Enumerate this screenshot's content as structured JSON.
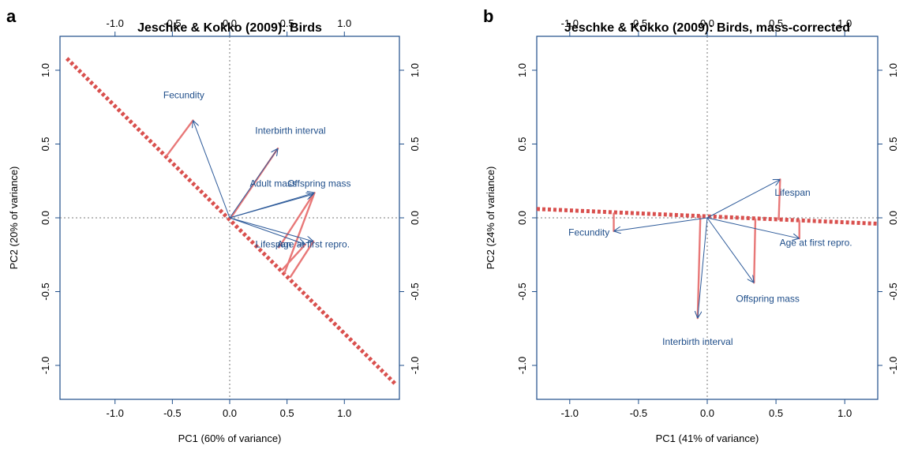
{
  "panels": [
    {
      "letter": "a",
      "chart_data": {
        "type": "scatter",
        "subtype": "pca-biplot",
        "title": "Jeschke & Kokko (2009): Birds",
        "xlabel": "PC1  (60% of variance)",
        "ylabel": "PC2  (20% of variance)",
        "xlim": [
          -1.48,
          1.48
        ],
        "ylim": [
          -1.23,
          1.23
        ],
        "x_ticks": [
          -1.0,
          -0.5,
          0.0,
          0.5,
          1.0
        ],
        "y_ticks": [
          -1.0,
          -0.5,
          0.0,
          0.5,
          1.0
        ],
        "x_tick_labels": [
          "-1.0",
          "-0.5",
          "0.0",
          "0.5",
          "1.0"
        ],
        "y_tick_labels": [
          "-1.0",
          "-0.5",
          "0.0",
          "0.5",
          "1.0"
        ],
        "grid": false,
        "reference_lines": [
          "x=0",
          "y=0"
        ],
        "colors": {
          "arrows": "#2e5b9a",
          "labels": "#1f4e8a",
          "axis_line": "#d9504e",
          "projections": "#e87878"
        },
        "axis_line": {
          "x1": -1.42,
          "y1": 1.08,
          "x2": 1.45,
          "y2": -1.13
        },
        "loadings": [
          {
            "label": "Fecundity",
            "x": -0.32,
            "y": 0.66,
            "proj_x": -0.55,
            "proj_y": 0.42,
            "label_x": -0.4,
            "label_y": 0.81
          },
          {
            "label": "Interbirth interval",
            "x": 0.42,
            "y": 0.47,
            "proj_x": 0.01,
            "proj_y": 0.0,
            "label_x": 0.53,
            "label_y": 0.57
          },
          {
            "label": "Adult mass",
            "x": 0.74,
            "y": 0.17,
            "proj_x": 0.48,
            "proj_y": -0.37,
            "label_x": 0.38,
            "label_y": 0.21
          },
          {
            "label": "Offspring mass",
            "x": 0.73,
            "y": 0.16,
            "proj_x": 0.43,
            "proj_y": -0.2,
            "label_x": 0.78,
            "label_y": 0.21
          },
          {
            "label": "Lifespan",
            "x": 0.66,
            "y": -0.18,
            "proj_x": 0.46,
            "proj_y": -0.35,
            "label_x": 0.38,
            "label_y": -0.2
          },
          {
            "label": "Age at first repro.",
            "x": 0.73,
            "y": -0.16,
            "proj_x": 0.53,
            "proj_y": -0.4,
            "label_x": 0.73,
            "label_y": -0.2
          }
        ]
      }
    },
    {
      "letter": "b",
      "chart_data": {
        "type": "scatter",
        "subtype": "pca-biplot",
        "title": "Jeschke & Kokko (2009): Birds, mass-corrected",
        "xlabel": "PC1  (41% of variance)",
        "ylabel": "PC2  (24% of variance)",
        "xlim": [
          -1.24,
          1.24
        ],
        "ylim": [
          -1.23,
          1.23
        ],
        "x_ticks": [
          -1.0,
          -0.5,
          0.0,
          0.5,
          1.0
        ],
        "y_ticks": [
          -1.0,
          -0.5,
          0.0,
          0.5,
          1.0
        ],
        "x_tick_labels": [
          "-1.0",
          "-0.5",
          "0.0",
          "0.5",
          "1.0"
        ],
        "y_tick_labels": [
          "-1.0",
          "-0.5",
          "0.0",
          "0.5",
          "1.0"
        ],
        "grid": false,
        "reference_lines": [
          "x=0",
          "y=0"
        ],
        "colors": {
          "arrows": "#2e5b9a",
          "labels": "#1f4e8a",
          "axis_line": "#d9504e",
          "projections": "#e87878"
        },
        "axis_line": {
          "x1": -1.24,
          "y1": 0.06,
          "x2": 1.24,
          "y2": -0.04
        },
        "loadings": [
          {
            "label": "Fecundity",
            "x": -0.68,
            "y": -0.09,
            "proj_x": -0.68,
            "proj_y": 0.03,
            "label_x": -0.86,
            "label_y": -0.12
          },
          {
            "label": "Interbirth interval",
            "x": -0.07,
            "y": -0.68,
            "proj_x": -0.05,
            "proj_y": 0.01,
            "label_x": -0.07,
            "label_y": -0.86
          },
          {
            "label": "Offspring mass",
            "x": 0.34,
            "y": -0.44,
            "proj_x": 0.35,
            "proj_y": -0.01,
            "label_x": 0.44,
            "label_y": -0.57
          },
          {
            "label": "Lifespan",
            "x": 0.53,
            "y": 0.26,
            "proj_x": 0.52,
            "proj_y": -0.01,
            "label_x": 0.62,
            "label_y": 0.15
          },
          {
            "label": "Age at first repro.",
            "x": 0.67,
            "y": -0.14,
            "proj_x": 0.67,
            "proj_y": -0.02,
            "label_x": 0.79,
            "label_y": -0.19
          }
        ]
      }
    }
  ]
}
